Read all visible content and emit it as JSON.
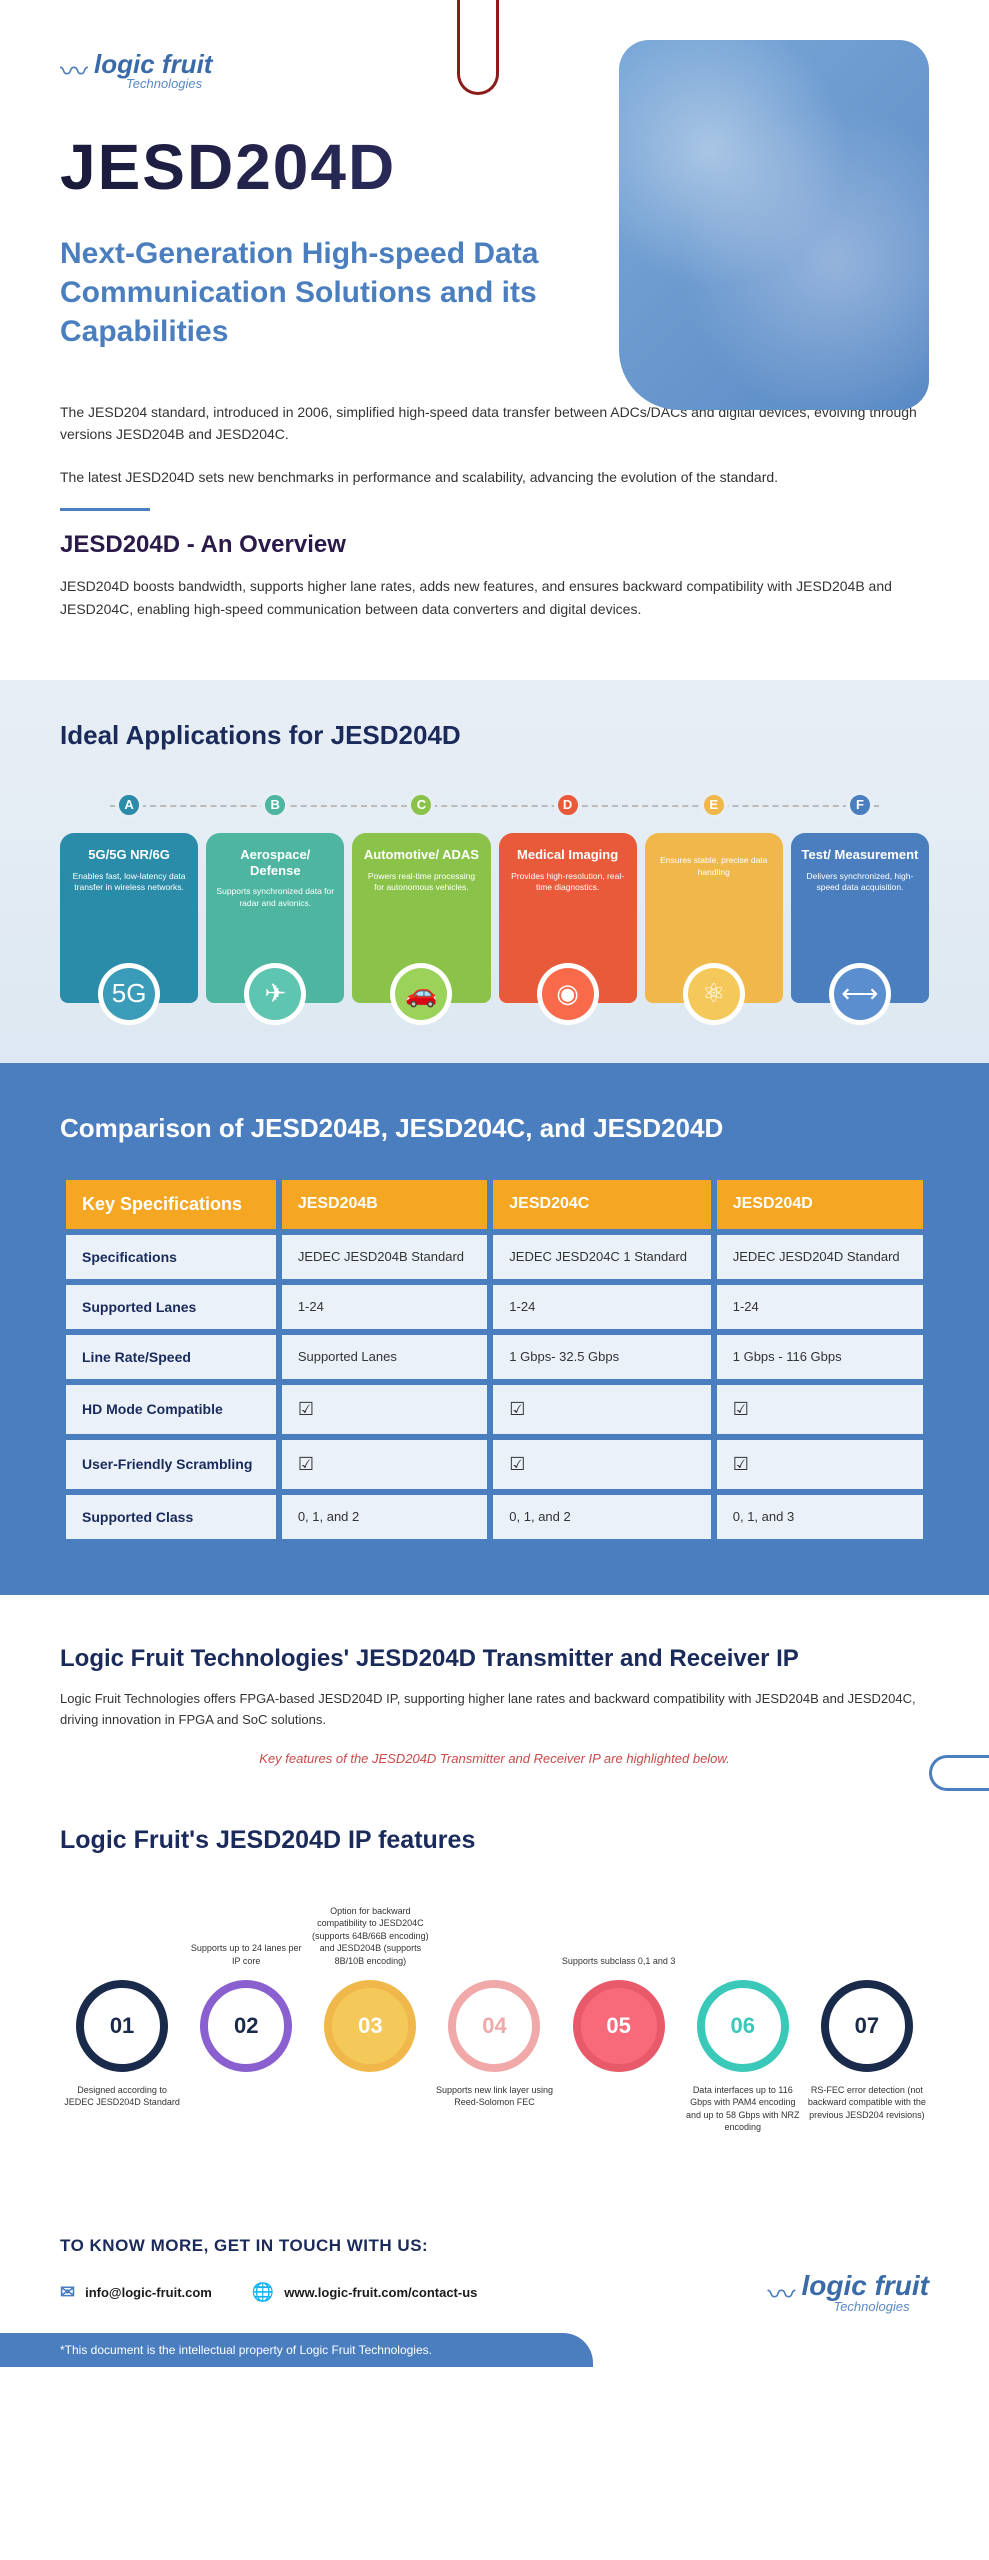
{
  "logo": {
    "main": "logic fruit",
    "sub": "Technologies"
  },
  "title": "JESD204D",
  "subtitle": "Next-Generation High-speed Data Communication Solutions and its Capabilities",
  "intro_p1": "The JESD204 standard, introduced in 2006, simplified high-speed data transfer between ADCs/DACs and digital devices, evolving through versions JESD204B and JESD204C.",
  "intro_p2": "The latest JESD204D sets new benchmarks in performance and scalability, advancing the evolution of the standard.",
  "overview_title": "JESD204D - An Overview",
  "overview_body": "JESD204D boosts bandwidth, supports higher lane rates, adds new features, and ensures backward compatibility with JESD204B and JESD204C, enabling high-speed communication between data converters and digital devices.",
  "apps": {
    "title": "Ideal Applications for JESD204D",
    "items": [
      {
        "letter": "A",
        "name": "5G/5G NR/6G",
        "desc": "Enables fast, low-latency data transfer in wireless networks.",
        "bg": "#2a8ca8",
        "icon_bg": "#3a9cb8",
        "icon": "5G"
      },
      {
        "letter": "B",
        "name": "Aerospace/ Defense",
        "desc": "Supports synchronized data for radar and avionics.",
        "bg": "#4eb5a0",
        "icon_bg": "#5ec5b0",
        "icon": "✈"
      },
      {
        "letter": "C",
        "name": "Automotive/ ADAS",
        "desc": "Powers real-time processing for autonomous vehicles.",
        "bg": "#8bc34a",
        "icon_bg": "#9bd35a",
        "icon": "🚗"
      },
      {
        "letter": "D",
        "name": "Medical Imaging",
        "desc": "Provides high-resolution, real-time diagnostics.",
        "bg": "#e85a3a",
        "icon_bg": "#f86a4a",
        "icon": "◉"
      },
      {
        "letter": "E",
        "name": "",
        "desc": "Ensures stable, precise data handling",
        "bg": "#f0b84a",
        "icon_bg": "#f5c85a",
        "icon": "⚛"
      },
      {
        "letter": "F",
        "name": "Test/ Measurement",
        "desc": "Delivers synchronized, high-speed data acquisition.",
        "bg": "#4a7ebf",
        "icon_bg": "#5a8ecf",
        "icon": "⟷"
      }
    ]
  },
  "compare": {
    "title": "Comparison of JESD204B, JESD204C, and JESD204D",
    "header": [
      "Key Specifications",
      "JESD204B",
      "JESD204C",
      "JESD204D"
    ],
    "rows": [
      [
        "Specifications",
        "JEDEC JESD204B Standard",
        "JEDEC JESD204C 1 Standard",
        "JEDEC JESD204D Standard"
      ],
      [
        "Supported Lanes",
        "1-24",
        "1-24",
        "1-24"
      ],
      [
        "Line Rate/Speed",
        "Supported Lanes",
        "1 Gbps- 32.5 Gbps",
        "1 Gbps -  116 Gbps"
      ],
      [
        "HD Mode Compatible",
        "☑",
        "☑",
        "☑"
      ],
      [
        "User-Friendly Scrambling",
        "☑",
        "☑",
        "☑"
      ],
      [
        "Supported Class",
        "0, 1, and 2",
        "0, 1, and 2",
        "0, 1, and 3"
      ]
    ]
  },
  "tx": {
    "title": "Logic Fruit Technologies' JESD204D Transmitter and Receiver IP",
    "desc": "Logic Fruit Technologies offers FPGA-based JESD204D IP, supporting higher lane rates and backward compatibility with JESD204B and JESD204C, driving innovation in FPGA and SoC solutions.",
    "highlight": "Key features of the JESD204D Transmitter and Receiver IP are highlighted below."
  },
  "features": {
    "title": "Logic Fruit's JESD204D IP features",
    "items": [
      {
        "num": "01",
        "pos": "down",
        "text": "Designed according to JEDEC JESD204D Standard",
        "ring": "#1a2a4a",
        "fill": "#fff",
        "txt": "#1a2a4a"
      },
      {
        "num": "02",
        "pos": "up",
        "text": "Supports up to 24 lanes per IP core",
        "ring": "#8a5fd0",
        "fill": "#fff",
        "txt": "#1a2a4a"
      },
      {
        "num": "03",
        "pos": "up",
        "text": "Option for backward compatibility to JESD204C (supports 64B/66B encoding) and JESD204B (supports 8B/10B encoding)",
        "ring": "#f0b84a",
        "fill": "#f5c85a",
        "txt": "#fff"
      },
      {
        "num": "04",
        "pos": "down",
        "text": "Supports new link layer using Reed-Solomon FEC",
        "ring": "#f0a8a8",
        "fill": "#fff",
        "txt": "#f0a8a8"
      },
      {
        "num": "05",
        "pos": "up",
        "text": "Supports subclass 0,1 and 3",
        "ring": "#e85a6a",
        "fill": "#f86a7a",
        "txt": "#fff"
      },
      {
        "num": "06",
        "pos": "down",
        "text": "Data interfaces up to 116 Gbps with PAM4 encoding and up to 58 Gbps with NRZ encoding",
        "ring": "#3ac8b8",
        "fill": "#fff",
        "txt": "#3ac8b8"
      },
      {
        "num": "07",
        "pos": "down",
        "text": "RS-FEC error detection (not backward compatible with the previous JESD204 revisions)",
        "ring": "#1a2a4a",
        "fill": "#fff",
        "txt": "#1a2a4a"
      }
    ]
  },
  "footer": {
    "title": "TO KNOW MORE, GET IN TOUCH WITH US:",
    "email": "info@logic-fruit.com",
    "url": "www.logic-fruit.com/contact-us",
    "disclaimer": "*This document is the intellectual property of Logic Fruit Technologies."
  }
}
